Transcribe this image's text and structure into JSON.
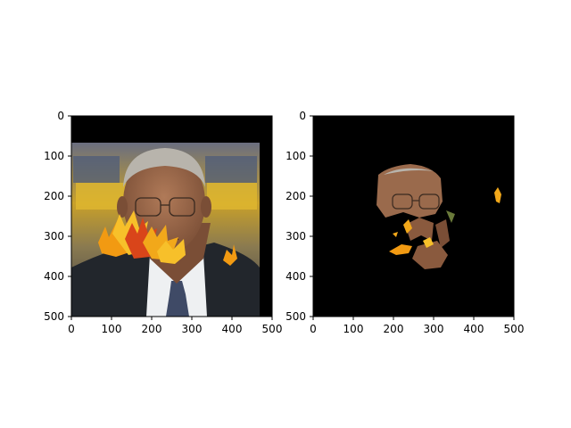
{
  "figure": {
    "background": "#ffffff",
    "panels": [
      {
        "id": "left",
        "description": "face with autumn maple leaves overlay",
        "xticks": [
          "0",
          "100",
          "200",
          "300",
          "400",
          "500"
        ],
        "yticks": [
          "0",
          "100",
          "200",
          "300",
          "400",
          "500"
        ],
        "xlim": [
          0,
          500
        ],
        "ylim": [
          500,
          0
        ],
        "colors": {
          "photo_background": "#000000",
          "suit": "#22262c",
          "skin": "#9a6a4c",
          "hair": "#b8b4ac",
          "shirt": "#eef0f2",
          "tie": "#3f4a66",
          "leaf_orange": "#f29a12",
          "leaf_yellow": "#f7c02a",
          "leaf_red": "#d9451a",
          "backdrop_yellow": "#c8a02a",
          "backdrop_blue": "#5a6a8a"
        }
      },
      {
        "id": "right",
        "description": "segmentation mask of face and leaves on black background",
        "xticks": [
          "0",
          "100",
          "200",
          "300",
          "400",
          "500"
        ],
        "yticks": [
          "0",
          "100",
          "200",
          "300",
          "400",
          "500"
        ],
        "xlim": [
          0,
          500
        ],
        "ylim": [
          500,
          0
        ],
        "colors": {
          "mask_background": "#000000",
          "skin": "#9a6a4c",
          "leaf": "#f2a81a"
        }
      }
    ]
  }
}
